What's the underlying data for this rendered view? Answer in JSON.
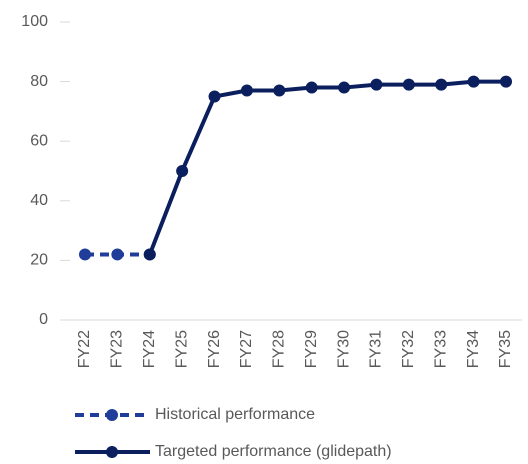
{
  "chart_data": {
    "type": "line",
    "categories": [
      "FY22",
      "FY23",
      "FY24",
      "FY25",
      "FY26",
      "FY27",
      "FY28",
      "FY29",
      "FY30",
      "FY31",
      "FY32",
      "FY33",
      "FY34",
      "FY35"
    ],
    "series": [
      {
        "name": "Historical performance",
        "color": "#1f3d99",
        "dashed": true,
        "values": [
          22,
          22,
          22,
          null,
          null,
          null,
          null,
          null,
          null,
          null,
          null,
          null,
          null,
          null
        ]
      },
      {
        "name": "Targeted performance (glidepath)",
        "color": "#0b1f5e",
        "dashed": false,
        "values": [
          null,
          null,
          22,
          50,
          75,
          77,
          77,
          78,
          78,
          79,
          79,
          79,
          80,
          80
        ]
      }
    ],
    "ylim": [
      0,
      100
    ],
    "yticks": [
      0,
      20,
      40,
      60,
      80,
      100
    ]
  }
}
